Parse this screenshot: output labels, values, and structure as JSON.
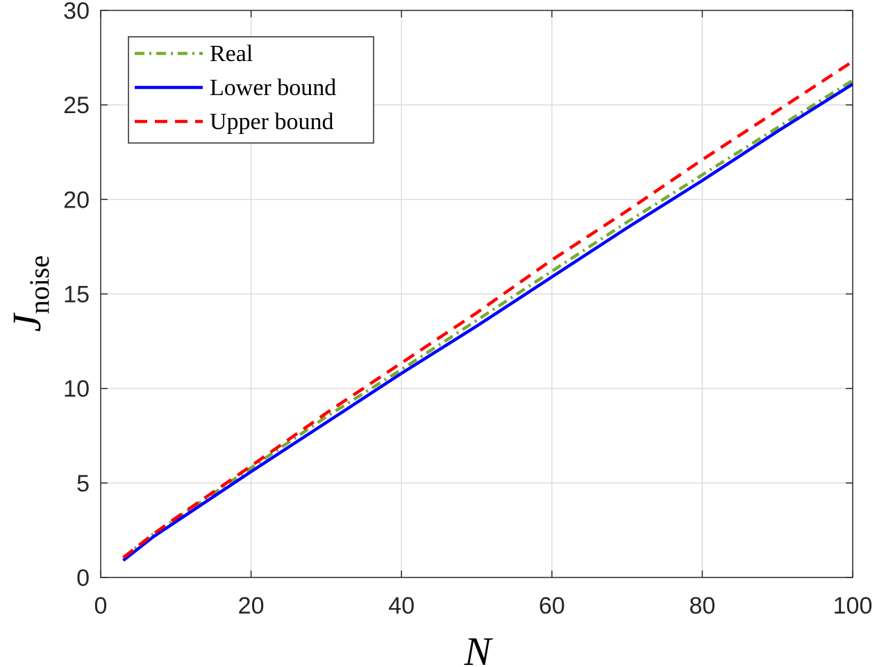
{
  "chart_data": {
    "type": "line",
    "title": "",
    "xlabel": "N",
    "ylabel": "J",
    "ylabel_subscript": "noise",
    "xlim": [
      0,
      100
    ],
    "ylim": [
      0,
      30
    ],
    "xticks": [
      "0",
      "20",
      "40",
      "60",
      "80",
      "100"
    ],
    "yticks": [
      "0",
      "5",
      "10",
      "15",
      "20",
      "25",
      "30"
    ],
    "grid": true,
    "legend_position": "top-left",
    "series": [
      {
        "name": "Real",
        "color": "#77AC30",
        "style": "dash-dot",
        "x": [
          3,
          7,
          10,
          20,
          30,
          40,
          50,
          60,
          70,
          80,
          90,
          100
        ],
        "y": [
          1.05,
          2.3,
          3.1,
          5.8,
          8.5,
          11.0,
          13.6,
          16.2,
          18.8,
          21.3,
          23.8,
          26.3
        ]
      },
      {
        "name": "Lower bound",
        "color": "#0000FF",
        "style": "solid",
        "x": [
          3,
          7,
          10,
          20,
          30,
          40,
          50,
          60,
          70,
          80,
          90,
          100
        ],
        "y": [
          0.9,
          2.15,
          2.95,
          5.6,
          8.2,
          10.8,
          13.3,
          15.9,
          18.5,
          21.0,
          23.6,
          26.1
        ]
      },
      {
        "name": "Upper bound",
        "color": "#FF0000",
        "style": "dashed",
        "x": [
          3,
          7,
          10,
          20,
          30,
          40,
          50,
          60,
          70,
          80,
          90,
          100
        ],
        "y": [
          1.05,
          2.3,
          3.15,
          5.9,
          8.7,
          11.35,
          14.0,
          16.8,
          19.4,
          22.1,
          24.7,
          27.3
        ]
      }
    ]
  }
}
